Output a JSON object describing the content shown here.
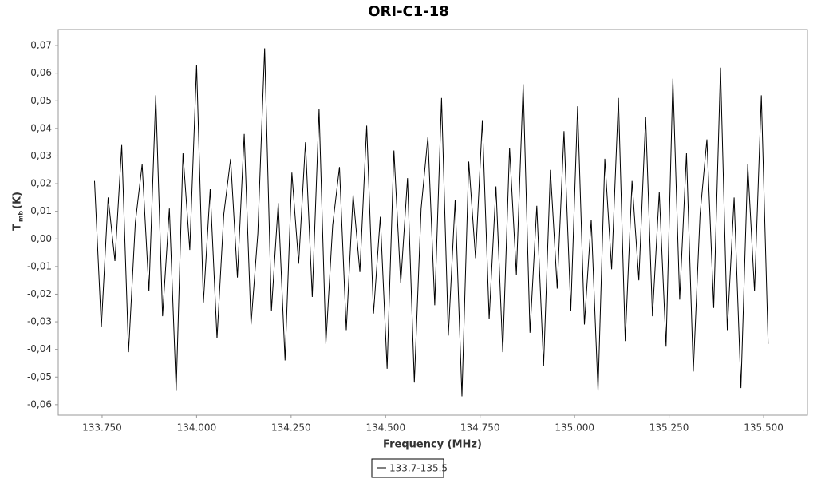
{
  "chart_data": {
    "type": "line",
    "title": "ORI-C1-18",
    "xlabel": "Frequency (MHz)",
    "ylabel": {
      "main": "T",
      "sub": "mb",
      "unit": "(K)"
    },
    "xlim": [
      133.634,
      135.616
    ],
    "ylim": [
      -0.0638,
      0.0758
    ],
    "xticks": [
      {
        "value": 133.75,
        "label": "133.750"
      },
      {
        "value": 134.0,
        "label": "134.000"
      },
      {
        "value": 134.25,
        "label": "134.250"
      },
      {
        "value": 134.5,
        "label": "134.500"
      },
      {
        "value": 134.75,
        "label": "134.750"
      },
      {
        "value": 135.0,
        "label": "135.000"
      },
      {
        "value": 135.25,
        "label": "135.250"
      },
      {
        "value": 135.5,
        "label": "135.500"
      }
    ],
    "yticks": [
      {
        "value": 0.07,
        "label": "0,07"
      },
      {
        "value": 0.06,
        "label": "0,06"
      },
      {
        "value": 0.05,
        "label": "0,05"
      },
      {
        "value": 0.04,
        "label": "0,04"
      },
      {
        "value": 0.03,
        "label": "0,03"
      },
      {
        "value": 0.02,
        "label": "0,02"
      },
      {
        "value": 0.01,
        "label": "0,01"
      },
      {
        "value": 0,
        "label": "0,00"
      },
      {
        "value": -0.01,
        "label": "-0,01"
      },
      {
        "value": -0.02,
        "label": "-0,02"
      },
      {
        "value": -0.03,
        "label": "-0,03"
      },
      {
        "value": -0.04,
        "label": "-0,04"
      },
      {
        "value": -0.05,
        "label": "-0,05"
      },
      {
        "value": -0.06,
        "label": "-0,06"
      }
    ],
    "x": [
      133.73,
      133.748,
      133.766,
      133.784,
      133.802,
      133.82,
      133.838,
      133.856,
      133.874,
      133.892,
      133.91,
      133.928,
      133.946,
      133.964,
      133.982,
      134.0,
      134.018,
      134.036,
      134.054,
      134.072,
      134.09,
      134.108,
      134.126,
      134.144,
      134.162,
      134.18,
      134.198,
      134.216,
      134.234,
      134.252,
      134.27,
      134.288,
      134.306,
      134.324,
      134.342,
      134.36,
      134.378,
      134.396,
      134.414,
      134.432,
      134.45,
      134.468,
      134.486,
      134.504,
      134.522,
      134.54,
      134.558,
      134.576,
      134.594,
      134.612,
      134.63,
      134.648,
      134.666,
      134.684,
      134.702,
      134.72,
      134.738,
      134.756,
      134.774,
      134.792,
      134.81,
      134.828,
      134.846,
      134.864,
      134.882,
      134.9,
      134.918,
      134.936,
      134.954,
      134.972,
      134.99,
      135.008,
      135.026,
      135.044,
      135.062,
      135.08,
      135.098,
      135.116,
      135.134,
      135.152,
      135.17,
      135.188,
      135.206,
      135.224,
      135.242,
      135.26,
      135.278,
      135.296,
      135.314,
      135.332,
      135.35,
      135.368,
      135.386,
      135.404,
      135.422,
      135.44,
      135.458,
      135.476,
      135.494,
      135.512
    ],
    "series": [
      {
        "name": "133.7-135.5",
        "color": "#000000",
        "values": [
          0.021,
          -0.032,
          0.015,
          -0.008,
          0.034,
          -0.041,
          0.006,
          0.027,
          -0.019,
          0.052,
          -0.028,
          0.011,
          -0.055,
          0.031,
          -0.004,
          0.063,
          -0.023,
          0.018,
          -0.036,
          0.009,
          0.029,
          -0.014,
          0.038,
          -0.031,
          0.002,
          0.069,
          -0.026,
          0.013,
          -0.044,
          0.024,
          -0.009,
          0.035,
          -0.021,
          0.047,
          -0.038,
          0.005,
          0.026,
          -0.033,
          0.016,
          -0.012,
          0.041,
          -0.027,
          0.008,
          -0.047,
          0.032,
          -0.016,
          0.022,
          -0.052,
          0.011,
          0.037,
          -0.024,
          0.051,
          -0.035,
          0.014,
          -0.057,
          0.028,
          -0.007,
          0.043,
          -0.029,
          0.019,
          -0.041,
          0.033,
          -0.013,
          0.056,
          -0.034,
          0.012,
          -0.046,
          0.025,
          -0.018,
          0.039,
          -0.026,
          0.048,
          -0.031,
          0.007,
          -0.055,
          0.029,
          -0.011,
          0.051,
          -0.037,
          0.021,
          -0.015,
          0.044,
          -0.028,
          0.017,
          -0.039,
          0.058,
          -0.022,
          0.031,
          -0.048,
          0.009,
          0.036,
          -0.025,
          0.062,
          -0.033,
          0.015,
          -0.054,
          0.027,
          -0.019,
          0.052,
          -0.038
        ]
      }
    ]
  }
}
